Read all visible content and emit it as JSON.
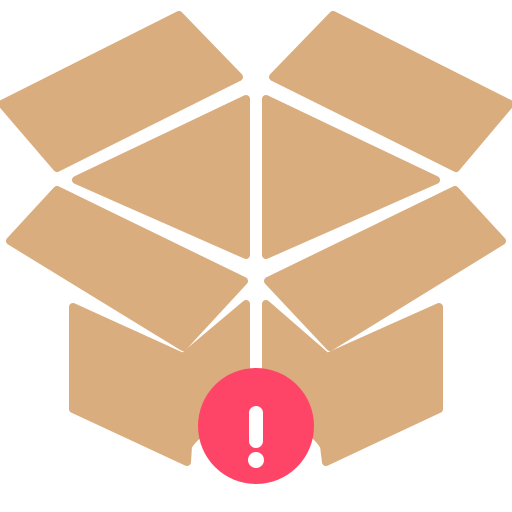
{
  "icon": {
    "name": "open-box-alert-icon",
    "box_color": "#d9ad7e",
    "badge_color": "#ff4567",
    "mark_color": "#ffffff",
    "badge_symbol": "exclamation-mark"
  }
}
